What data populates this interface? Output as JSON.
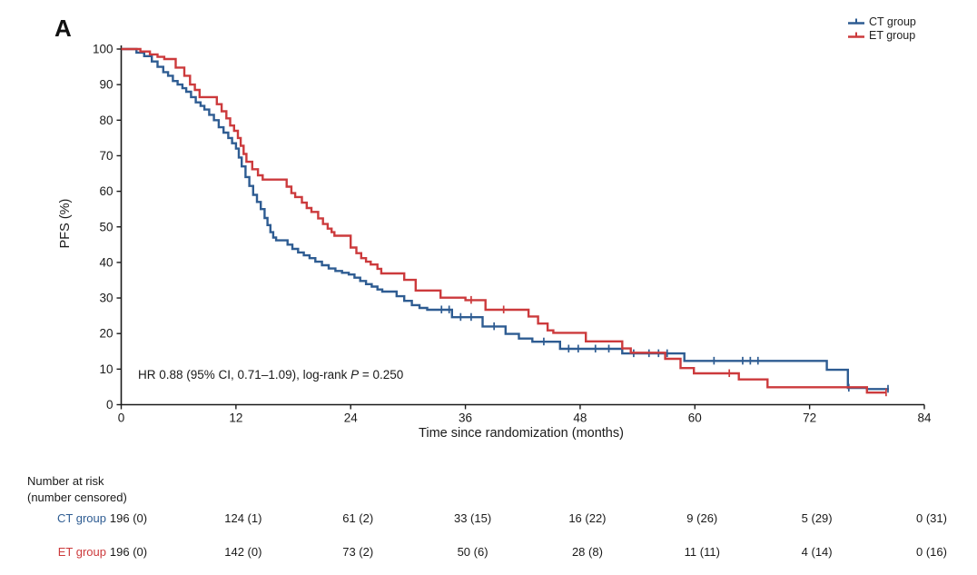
{
  "panel_label": "A",
  "legend": {
    "items": [
      {
        "name": "ct",
        "label": "CT group",
        "color": "#2e5c92"
      },
      {
        "name": "et",
        "label": "ET group",
        "color": "#cc3a3c"
      }
    ]
  },
  "annotation": {
    "prefix": "HR 0.88 (95% CI, 0.71–1.09), log-rank ",
    "p_symbol": "P",
    "suffix": " = 0.250"
  },
  "chart_data": {
    "type": "line",
    "subtype": "kaplan-meier-step",
    "title": "",
    "xlabel": "Time since randomization (months)",
    "ylabel": "PFS (%)",
    "xlim": [
      0,
      84
    ],
    "ylim": [
      0,
      100
    ],
    "xticks": [
      0,
      12,
      24,
      36,
      48,
      60,
      72,
      84
    ],
    "yticks": [
      0,
      10,
      20,
      30,
      40,
      50,
      60,
      70,
      80,
      90,
      100
    ],
    "grid": false,
    "legend_position": "top-right",
    "series": [
      {
        "name": "CT group",
        "color": "#2e5c92",
        "points": [
          [
            0,
            100
          ],
          [
            1.6,
            99
          ],
          [
            2.4,
            98
          ],
          [
            3.2,
            96.5
          ],
          [
            3.8,
            95
          ],
          [
            4.4,
            93.5
          ],
          [
            4.9,
            92.5
          ],
          [
            5.4,
            91
          ],
          [
            5.9,
            90
          ],
          [
            6.4,
            89
          ],
          [
            6.8,
            88
          ],
          [
            7.3,
            86.5
          ],
          [
            7.8,
            85
          ],
          [
            8.3,
            84
          ],
          [
            8.7,
            83
          ],
          [
            9.2,
            81.5
          ],
          [
            9.7,
            80
          ],
          [
            10.2,
            78
          ],
          [
            10.7,
            76.5
          ],
          [
            11.2,
            75
          ],
          [
            11.6,
            73.5
          ],
          [
            12.0,
            72
          ],
          [
            12.3,
            69.5
          ],
          [
            12.6,
            67
          ],
          [
            13.0,
            64
          ],
          [
            13.4,
            61.5
          ],
          [
            13.8,
            59
          ],
          [
            14.2,
            57
          ],
          [
            14.6,
            55
          ],
          [
            15.0,
            52.5
          ],
          [
            15.3,
            50.5
          ],
          [
            15.6,
            48.5
          ],
          [
            15.9,
            47
          ],
          [
            16.2,
            46.2
          ],
          [
            17.4,
            45
          ],
          [
            17.9,
            43.8
          ],
          [
            18.5,
            42.8
          ],
          [
            19.1,
            42
          ],
          [
            19.7,
            41.2
          ],
          [
            20.3,
            40.2
          ],
          [
            21.0,
            39.2
          ],
          [
            21.7,
            38.3
          ],
          [
            22.4,
            37.6
          ],
          [
            23.1,
            37.1
          ],
          [
            23.8,
            36.6
          ],
          [
            24.4,
            35.7
          ],
          [
            25.0,
            34.8
          ],
          [
            25.6,
            33.9
          ],
          [
            26.2,
            33.2
          ],
          [
            26.8,
            32.4
          ],
          [
            27.3,
            31.8
          ],
          [
            28.8,
            30.5
          ],
          [
            29.6,
            29.2
          ],
          [
            30.4,
            28
          ],
          [
            31.2,
            27.2
          ],
          [
            32.0,
            26.7
          ],
          [
            34.6,
            24.6
          ],
          [
            37.8,
            22
          ],
          [
            40.2,
            19.9
          ],
          [
            41.6,
            18.6
          ],
          [
            43.0,
            17.7
          ],
          [
            45.9,
            15.7
          ],
          [
            52.4,
            14.4
          ],
          [
            58.9,
            12.3
          ],
          [
            73.8,
            9.8
          ],
          [
            76.0,
            4.7
          ],
          [
            78.0,
            4.4
          ],
          [
            80.3,
            4.4
          ]
        ],
        "censors": [
          [
            33.5,
            26.7
          ],
          [
            34.3,
            26.7
          ],
          [
            35.5,
            24.6
          ],
          [
            36.6,
            24.6
          ],
          [
            39.0,
            22
          ],
          [
            44.2,
            17.7
          ],
          [
            46.8,
            15.7
          ],
          [
            47.8,
            15.7
          ],
          [
            49.6,
            15.7
          ],
          [
            51.0,
            15.7
          ],
          [
            53.6,
            14.4
          ],
          [
            55.2,
            14.4
          ],
          [
            56.2,
            14.4
          ],
          [
            57.1,
            14.4
          ],
          [
            62.0,
            12.3
          ],
          [
            65.0,
            12.3
          ],
          [
            65.8,
            12.3
          ],
          [
            66.6,
            12.3
          ],
          [
            76.1,
            4.7
          ],
          [
            80.2,
            4.4
          ]
        ]
      },
      {
        "name": "ET group",
        "color": "#cc3a3c",
        "points": [
          [
            0,
            100
          ],
          [
            2.0,
            99.3
          ],
          [
            3.0,
            98.5
          ],
          [
            3.8,
            97.8
          ],
          [
            4.5,
            97.2
          ],
          [
            5.7,
            94.8
          ],
          [
            6.6,
            92.5
          ],
          [
            7.2,
            90
          ],
          [
            7.7,
            88.5
          ],
          [
            8.2,
            86.5
          ],
          [
            10.0,
            84.5
          ],
          [
            10.5,
            82.5
          ],
          [
            11.0,
            80.5
          ],
          [
            11.4,
            78.5
          ],
          [
            11.8,
            77
          ],
          [
            12.2,
            75
          ],
          [
            12.5,
            72.8
          ],
          [
            12.8,
            70.5
          ],
          [
            13.1,
            68.3
          ],
          [
            13.7,
            66.2
          ],
          [
            14.3,
            64.5
          ],
          [
            14.8,
            63.3
          ],
          [
            17.3,
            61.3
          ],
          [
            17.8,
            59.5
          ],
          [
            18.2,
            58.4
          ],
          [
            18.9,
            56.8
          ],
          [
            19.4,
            55.3
          ],
          [
            19.9,
            54.2
          ],
          [
            20.6,
            52.4
          ],
          [
            21.1,
            50.8
          ],
          [
            21.6,
            49.5
          ],
          [
            22.0,
            48.5
          ],
          [
            22.3,
            47.5
          ],
          [
            24.0,
            44.2
          ],
          [
            24.6,
            42.6
          ],
          [
            25.1,
            41.2
          ],
          [
            25.6,
            40.2
          ],
          [
            26.1,
            39.4
          ],
          [
            26.8,
            38.2
          ],
          [
            27.2,
            36.9
          ],
          [
            29.6,
            35.1
          ],
          [
            30.8,
            32.1
          ],
          [
            33.4,
            30.1
          ],
          [
            36.0,
            29.4
          ],
          [
            38.1,
            26.7
          ],
          [
            42.6,
            24.8
          ],
          [
            43.6,
            22.8
          ],
          [
            44.6,
            20.9
          ],
          [
            45.2,
            20.2
          ],
          [
            48.6,
            17.8
          ],
          [
            52.4,
            15.8
          ],
          [
            53.3,
            14.6
          ],
          [
            56.9,
            12.9
          ],
          [
            58.5,
            10.3
          ],
          [
            59.9,
            8.8
          ],
          [
            64.6,
            7.1
          ],
          [
            67.6,
            4.9
          ],
          [
            78.0,
            3.4
          ],
          [
            80.0,
            3.4
          ]
        ],
        "censors": [
          [
            36.6,
            29.4
          ],
          [
            40.0,
            26.7
          ],
          [
            63.6,
            8.8
          ],
          [
            80.0,
            3.4
          ]
        ]
      }
    ]
  },
  "risk_table": {
    "header_line1": "Number at risk",
    "header_line2": "(number censored)",
    "times": [
      0,
      12,
      24,
      36,
      48,
      60,
      72,
      84
    ],
    "rows": [
      {
        "label": "CT group",
        "color": "#2e5c92",
        "values": [
          "196 (0)",
          "124 (1)",
          "61 (2)",
          "33 (15)",
          "16 (22)",
          "9 (26)",
          "5 (29)",
          "0 (31)"
        ]
      },
      {
        "label": "ET group",
        "color": "#cc3a3c",
        "values": [
          "196 (0)",
          "142 (0)",
          "73 (2)",
          "50 (6)",
          "28 (8)",
          "11 (11)",
          "4 (14)",
          "0 (16)"
        ]
      }
    ]
  }
}
